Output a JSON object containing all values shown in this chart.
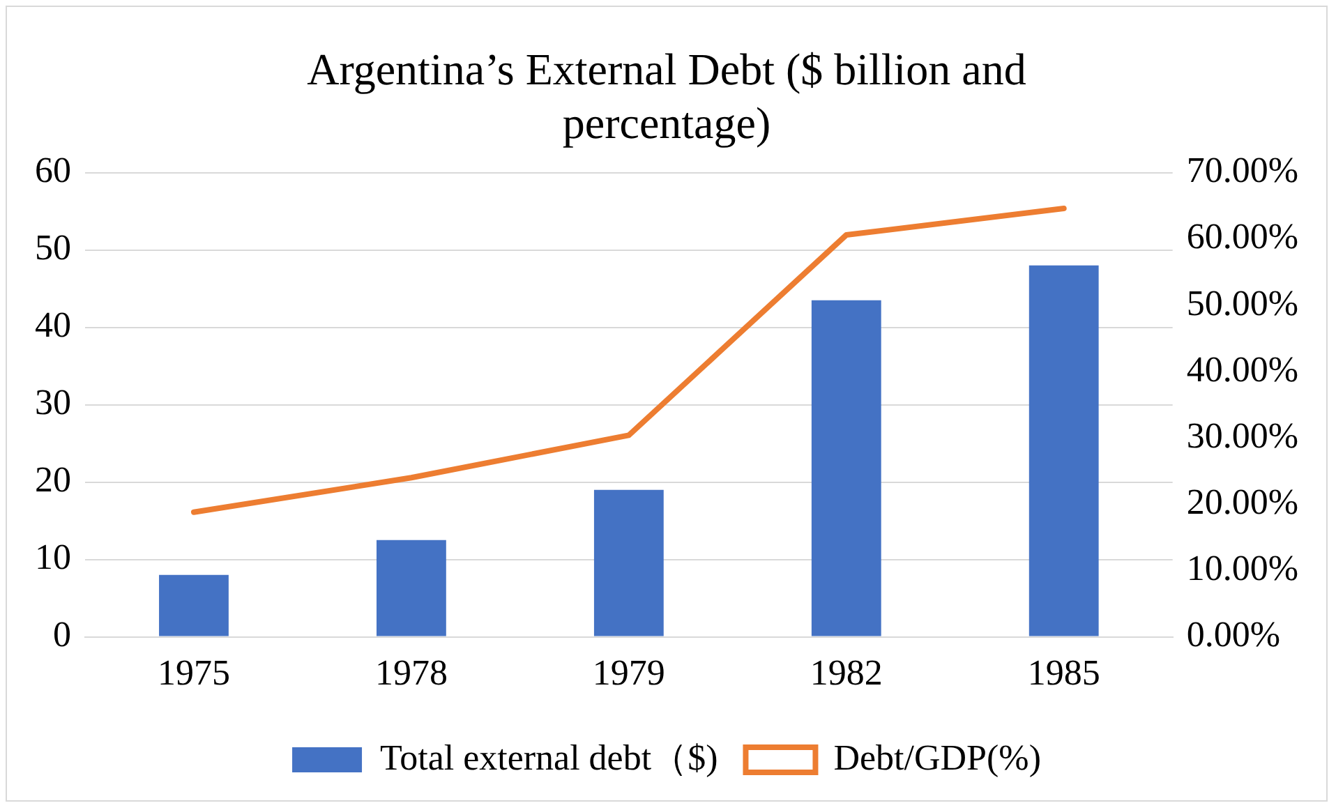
{
  "chart_data": {
    "type": "bar",
    "title": "Argentina’s External Debt ($ billion and percentage)",
    "categories": [
      "1975",
      "1978",
      "1979",
      "1982",
      "1985"
    ],
    "series": [
      {
        "name": "Total external debt（$)",
        "color": "#4472c4",
        "values": [
          8,
          12.5,
          19,
          43.5,
          48
        ]
      },
      {
        "name": "Debt/GDP(%)",
        "type": "line",
        "axis": "y2",
        "color": "#ed7d31",
        "values": [
          18.8,
          24,
          30.4,
          60.6,
          64.6
        ]
      }
    ],
    "ylim": [
      0,
      60
    ],
    "yticks": [
      0,
      10,
      20,
      30,
      40,
      50,
      60
    ],
    "y2lim": [
      0,
      70
    ],
    "y2ticks": [
      {
        "value": 0,
        "label": "0.00%"
      },
      {
        "value": 10,
        "label": "10.00%"
      },
      {
        "value": 20,
        "label": "20.00%"
      },
      {
        "value": 30,
        "label": "30.00%"
      },
      {
        "value": 40,
        "label": "40.00%"
      },
      {
        "value": 50,
        "label": "50.00%"
      },
      {
        "value": 60,
        "label": "60.00%"
      },
      {
        "value": 70,
        "label": "70.00%"
      }
    ],
    "grid": "y",
    "legend": "bottom",
    "marker": "none"
  }
}
